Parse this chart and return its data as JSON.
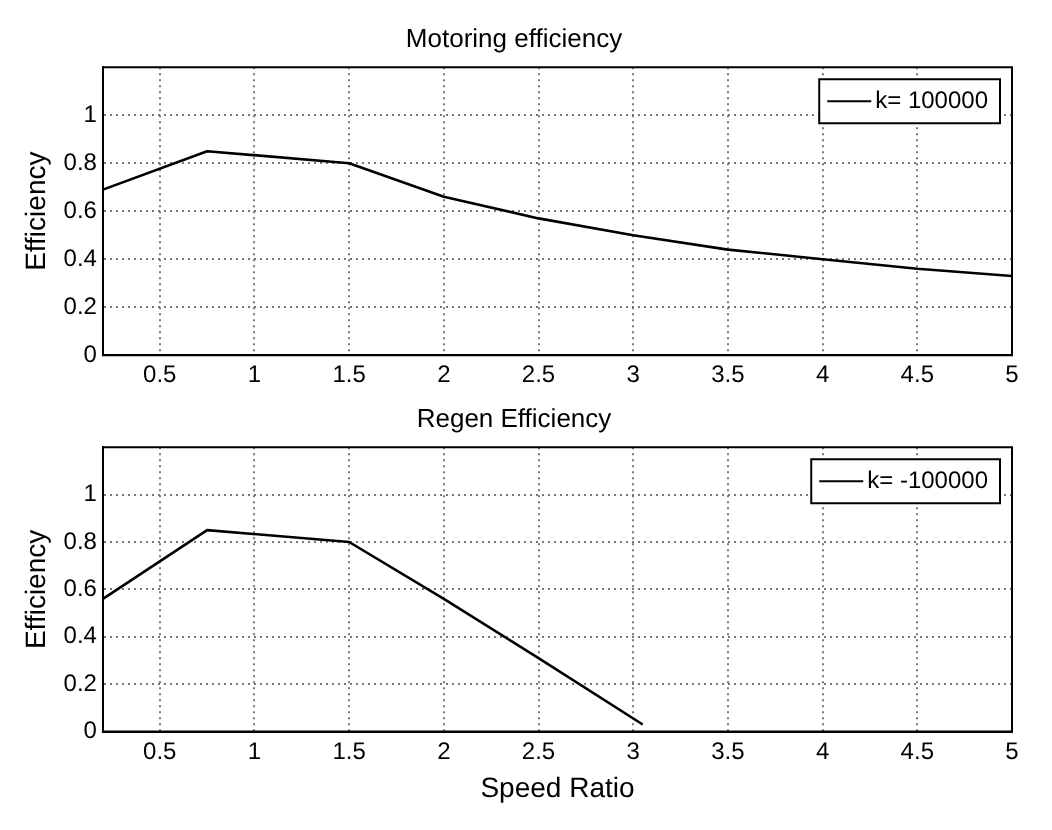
{
  "chart_data": [
    {
      "type": "line",
      "title": "Motoring efficiency",
      "ylabel": "Efficiency",
      "xlim": [
        0.2,
        5
      ],
      "xticks": [
        0.5,
        1,
        1.5,
        2,
        2.5,
        3,
        3.5,
        4,
        4.5,
        5
      ],
      "ylim": [
        0,
        1.2
      ],
      "yticks": [
        0,
        0.2,
        0.4,
        0.6,
        0.8,
        1
      ],
      "grid": true,
      "legend": "top right",
      "marker": "none",
      "line_style": "solid",
      "series": [
        {
          "name": "k= 100000",
          "color": "#000000",
          "x": [
            0.2,
            0.75,
            1.5,
            2,
            2.5,
            3,
            3.5,
            4,
            4.5,
            5
          ],
          "values": [
            0.69,
            0.85,
            0.8,
            0.66,
            0.57,
            0.5,
            0.44,
            0.4,
            0.36,
            0.33
          ]
        }
      ]
    },
    {
      "type": "line",
      "title": "Regen Efficiency",
      "xlabel": "Speed Ratio",
      "ylabel": "Efficiency",
      "xlim": [
        0.2,
        5
      ],
      "xticks": [
        0.5,
        1,
        1.5,
        2,
        2.5,
        3,
        3.5,
        4,
        4.5,
        5
      ],
      "ylim": [
        0,
        1.2
      ],
      "yticks": [
        0,
        0.2,
        0.4,
        0.6,
        0.8,
        1
      ],
      "grid": true,
      "legend": "top right",
      "marker": "none",
      "line_style": "solid",
      "series": [
        {
          "name": "k= -100000",
          "color": "#000000",
          "x": [
            0.2,
            0.75,
            1.5,
            2,
            2.5,
            3.05
          ],
          "values": [
            0.56,
            0.85,
            0.8,
            0.56,
            0.31,
            0.03
          ]
        }
      ]
    }
  ]
}
